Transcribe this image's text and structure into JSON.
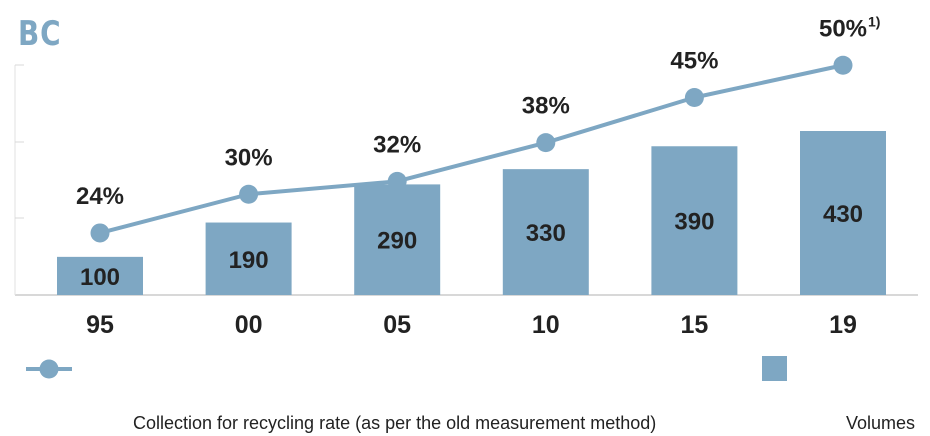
{
  "header": {
    "label": "BC"
  },
  "colors": {
    "bar": "#7ea7c3",
    "line": "#7ea7c3",
    "text": "#222222",
    "axis": "#cccccc"
  },
  "chart_data": {
    "type": "bar",
    "categories": [
      "95",
      "00",
      "05",
      "10",
      "15",
      "19"
    ],
    "series": [
      {
        "name": "Volumes",
        "type": "bar",
        "values": [
          100,
          190,
          290,
          330,
          390,
          430
        ],
        "labels": [
          "100",
          "190",
          "290",
          "330",
          "390",
          "430"
        ]
      },
      {
        "name": "Collection for recycling rate (as per the old measurement method)",
        "type": "line",
        "values": [
          24,
          30,
          32,
          38,
          45,
          50
        ],
        "labels": [
          "24%",
          "30%",
          "32%",
          "38%",
          "45%",
          "50%"
        ],
        "footnotes": [
          "",
          "",
          "",
          "",
          "",
          "1)"
        ]
      }
    ],
    "bar_ylim": [
      0,
      600
    ],
    "line_ylim": [
      0,
      55
    ],
    "legend_position": "bottom"
  }
}
